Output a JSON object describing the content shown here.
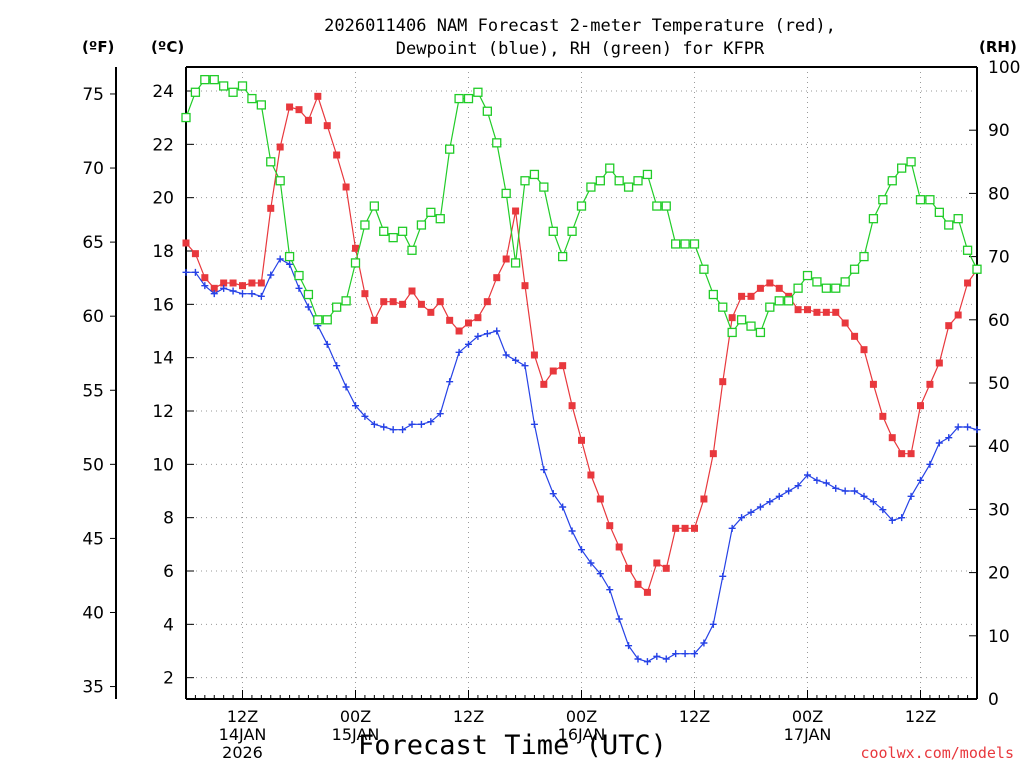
{
  "title_line1": "2026011406 NAM Forecast 2-meter Temperature (red),",
  "title_line2": "Dewpoint (blue), RH (green) for KFPR",
  "unit_f": "(ºF)",
  "unit_c": "(ºC)",
  "unit_rh": "(RH)",
  "x_title": "Forecast Time (UTC)",
  "credit": "coolwx.com/models",
  "chart_data": {
    "type": "line",
    "title": "2026011406 NAM Forecast 2-meter Temperature (red), Dewpoint (blue), RH (green) for KFPR",
    "xlabel": "Forecast Time (UTC)",
    "x_unit": "forecast hour (0 = 2026-01-14 06Z)",
    "xlim": [
      0,
      84
    ],
    "x": [
      0,
      1,
      2,
      3,
      4,
      5,
      6,
      7,
      8,
      9,
      10,
      11,
      12,
      13,
      14,
      15,
      16,
      17,
      18,
      19,
      20,
      21,
      22,
      23,
      24,
      25,
      26,
      27,
      28,
      29,
      30,
      31,
      32,
      33,
      34,
      35,
      36,
      37,
      38,
      39,
      40,
      41,
      42,
      43,
      44,
      45,
      46,
      47,
      48,
      49,
      50,
      51,
      52,
      53,
      54,
      55,
      56,
      57,
      58,
      59,
      60,
      61,
      62,
      63,
      64,
      65,
      66,
      67,
      68,
      69,
      70,
      71,
      72,
      73,
      74,
      75,
      76,
      77,
      78,
      79,
      80,
      81,
      82,
      83,
      84
    ],
    "x_tick_labels": [
      {
        "hour": 6,
        "lines": [
          "12Z",
          "14JAN",
          "2026"
        ]
      },
      {
        "hour": 18,
        "lines": [
          "00Z",
          "15JAN"
        ]
      },
      {
        "hour": 30,
        "lines": [
          "12Z"
        ]
      },
      {
        "hour": 42,
        "lines": [
          "00Z",
          "16JAN"
        ]
      },
      {
        "hour": 54,
        "lines": [
          "12Z"
        ]
      },
      {
        "hour": 66,
        "lines": [
          "00Z",
          "17JAN"
        ]
      },
      {
        "hour": 78,
        "lines": [
          "12Z"
        ]
      }
    ],
    "left_axis_celsius": {
      "label": "(ºC)",
      "ticks": [
        2,
        4,
        6,
        8,
        10,
        12,
        14,
        16,
        18,
        20,
        22,
        24
      ]
    },
    "left_axis_fahrenheit": {
      "label": "(ºF)",
      "ticks": [
        35,
        40,
        45,
        50,
        55,
        60,
        65,
        70,
        75
      ]
    },
    "right_axis_rh": {
      "label": "(RH)",
      "range": [
        0,
        100
      ],
      "ticks": [
        0,
        10,
        20,
        30,
        40,
        50,
        60,
        70,
        80,
        90,
        100
      ]
    },
    "ylim_celsius": [
      1.2,
      24.9
    ],
    "grid": true,
    "series": [
      {
        "name": "Temperature",
        "unit": "C",
        "axis": "left",
        "color": "#e8383d",
        "marker": "filled-square",
        "values": [
          18.3,
          17.9,
          17.0,
          16.6,
          16.8,
          16.8,
          16.7,
          16.8,
          16.8,
          19.6,
          21.9,
          23.4,
          23.3,
          22.9,
          23.8,
          22.7,
          21.6,
          20.4,
          18.1,
          16.4,
          15.4,
          16.1,
          16.1,
          16.0,
          16.5,
          16.0,
          15.7,
          16.1,
          15.4,
          15.0,
          15.3,
          15.5,
          16.1,
          17.0,
          17.7,
          19.5,
          16.7,
          14.1,
          13.0,
          13.5,
          13.7,
          12.2,
          10.9,
          9.6,
          8.7,
          7.7,
          6.9,
          6.1,
          5.5,
          5.2,
          6.3,
          6.1,
          7.6,
          7.6,
          7.6,
          8.7,
          10.4,
          13.1,
          15.5,
          16.3,
          16.3,
          16.6,
          16.8,
          16.6,
          16.3,
          15.8,
          15.8,
          15.7,
          15.7,
          15.7,
          15.3,
          14.8,
          14.3,
          13.0,
          11.8,
          11.0,
          10.4,
          10.4,
          12.2,
          13.0,
          13.8,
          15.2,
          15.6,
          16.8,
          17.3
        ]
      },
      {
        "name": "Dewpoint",
        "unit": "C",
        "axis": "left",
        "color": "#2642e6",
        "marker": "plus",
        "values": [
          17.2,
          17.2,
          16.7,
          16.4,
          16.6,
          16.5,
          16.4,
          16.4,
          16.3,
          17.1,
          17.7,
          17.5,
          16.6,
          15.9,
          15.2,
          14.5,
          13.7,
          12.9,
          12.2,
          11.8,
          11.5,
          11.4,
          11.3,
          11.3,
          11.5,
          11.5,
          11.6,
          11.9,
          13.1,
          14.2,
          14.5,
          14.8,
          14.9,
          15.0,
          14.1,
          13.9,
          13.7,
          11.5,
          9.8,
          8.9,
          8.4,
          7.5,
          6.8,
          6.3,
          5.9,
          5.3,
          4.2,
          3.2,
          2.7,
          2.6,
          2.8,
          2.7,
          2.9,
          2.9,
          2.9,
          3.3,
          4.0,
          5.8,
          7.6,
          8.0,
          8.2,
          8.4,
          8.6,
          8.8,
          9.0,
          9.2,
          9.6,
          9.4,
          9.3,
          9.1,
          9.0,
          9.0,
          8.8,
          8.6,
          8.3,
          7.9,
          8.0,
          8.8,
          9.4,
          10.0,
          10.8,
          11.0,
          11.4,
          11.4,
          11.3
        ]
      },
      {
        "name": "RH",
        "unit": "%",
        "axis": "right",
        "color": "#21cc28",
        "marker": "open-square",
        "values": [
          92,
          96,
          98,
          98,
          97,
          96,
          97,
          95,
          94,
          85,
          82,
          70,
          67,
          64,
          60,
          60,
          62,
          63,
          69,
          75,
          78,
          74,
          73,
          74,
          71,
          75,
          77,
          76,
          87,
          95,
          95,
          96,
          93,
          88,
          80,
          69,
          82,
          83,
          81,
          74,
          70,
          74,
          78,
          81,
          82,
          84,
          82,
          81,
          82,
          83,
          78,
          78,
          72,
          72,
          72,
          68,
          64,
          62,
          58,
          60,
          59,
          58,
          62,
          63,
          63,
          65,
          67,
          66,
          65,
          65,
          66,
          68,
          70,
          76,
          79,
          82,
          84,
          85,
          79,
          79,
          77,
          75,
          76,
          71,
          68
        ]
      }
    ]
  }
}
